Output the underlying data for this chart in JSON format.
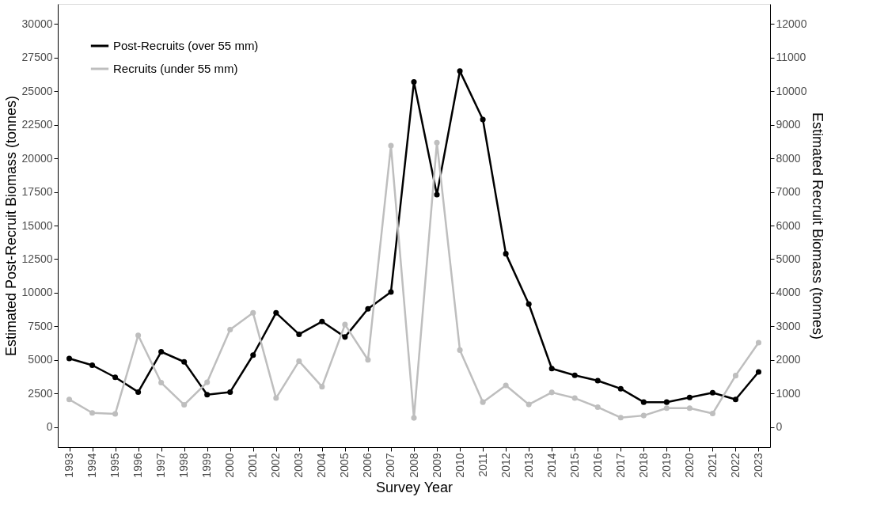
{
  "chart_data": {
    "type": "line",
    "xlabel": "Survey Year",
    "ylabel": "Estimated Post-Recruit Biomass (tonnes)",
    "y2label": "Estimated Recruit Biomass (tonnes)",
    "categories": [
      "1993",
      "1994",
      "1995",
      "1996",
      "1997",
      "1998",
      "1999",
      "2000",
      "2001",
      "2002",
      "2003",
      "2004",
      "2005",
      "2006",
      "2007",
      "2008",
      "2009",
      "2010",
      "2011",
      "2012",
      "2013",
      "2014",
      "2015",
      "2016",
      "2017",
      "2018",
      "2019",
      "2020",
      "2021",
      "2022",
      "2023"
    ],
    "series": [
      {
        "name": "Post-Recruits (over 55 mm)",
        "color": "#000000",
        "values": [
          5100,
          4600,
          3700,
          2600,
          5600,
          4850,
          2400,
          2600,
          5350,
          8500,
          6900,
          7850,
          6700,
          8800,
          10050,
          25700,
          17300,
          26500,
          22900,
          12900,
          9150,
          4350,
          3850,
          3450,
          2850,
          1850,
          1850,
          2200,
          2550,
          2050,
          4100
        ]
      },
      {
        "name": "Recruits (under 55 mm)",
        "color": "#bebebe",
        "axis": "y2",
        "values": [
          820,
          420,
          390,
          2730,
          1320,
          660,
          1330,
          2900,
          3400,
          860,
          1960,
          1200,
          3050,
          2000,
          8380,
          270,
          8470,
          2290,
          740,
          1240,
          670,
          1030,
          860,
          590,
          280,
          340,
          560,
          560,
          400,
          1530,
          2510
        ]
      }
    ],
    "ylim": [
      -1500,
      31500
    ],
    "yticks": [
      0,
      2500,
      5000,
      7500,
      10000,
      12500,
      15000,
      17500,
      20000,
      22500,
      25000,
      27500,
      30000
    ],
    "y2lim": [
      -600,
      12600
    ],
    "y2ticks": [
      0,
      1000,
      2000,
      3000,
      4000,
      5000,
      6000,
      7000,
      8000,
      9000,
      10000,
      11000,
      12000
    ],
    "grid": false,
    "legend": "top left",
    "marker": "circle",
    "line_style": "solid"
  }
}
